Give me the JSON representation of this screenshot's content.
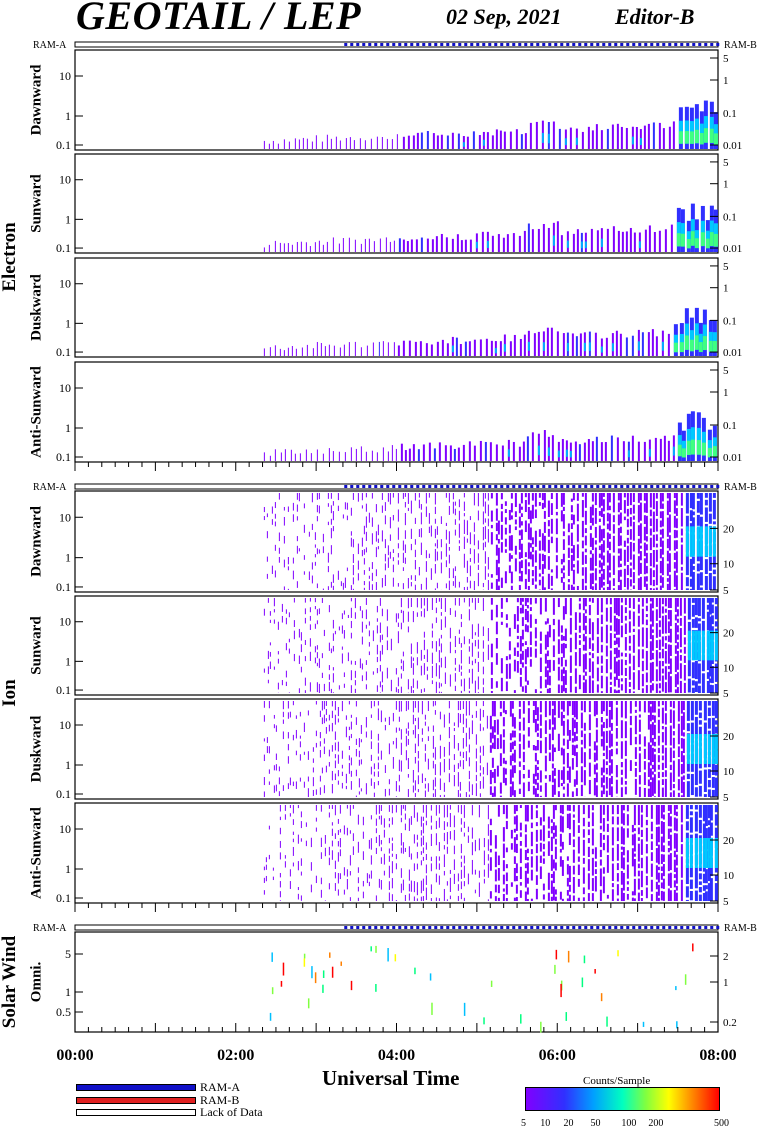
{
  "header": {
    "title": "GEOTAIL / LEP",
    "date": "02 Sep, 2021",
    "editor": "Editor-B"
  },
  "ram_labels": {
    "a": "RAM-A",
    "b": "RAM-B"
  },
  "groups": {
    "electron": "Electron",
    "ion": "Ion",
    "solar_wind": "Solar Wind"
  },
  "panel_labels": {
    "electron": [
      "Dawnward",
      "Sunward",
      "Duskward",
      "Anti-Sunward"
    ],
    "ion": [
      "Dawnward",
      "Sunward",
      "Duskward",
      "Anti-Sunward"
    ],
    "solar_wind": [
      "Omni."
    ]
  },
  "left_ticks": {
    "main": [
      "10",
      "1",
      "0.1"
    ],
    "solar_wind": [
      "5",
      "1",
      "0.5"
    ]
  },
  "right_ticks": {
    "electron": [
      "5",
      "1",
      "0.1",
      "0.01"
    ],
    "ion": [
      "20",
      "10",
      "5"
    ],
    "solar_wind": [
      "2",
      "1",
      "0.2"
    ]
  },
  "x_axis": {
    "title": "Universal Time",
    "ticks": [
      "00:00",
      "02:00",
      "04:00",
      "06:00",
      "08:00"
    ]
  },
  "legend": {
    "ram_a": "RAM-A",
    "ram_b": "RAM-B",
    "lack": "Lack of Data",
    "colors": {
      "ram_a": "#1010c8",
      "ram_b": "#e02020",
      "lack": "#ffffff"
    }
  },
  "colorbar": {
    "title": "Counts/Sample",
    "ticks": [
      "5",
      "10",
      "20",
      "50",
      "100",
      "200",
      "500"
    ],
    "colors": [
      "#8000ff",
      "#3030ff",
      "#00a0ff",
      "#00ffc0",
      "#80ff40",
      "#ffff00",
      "#ff8000",
      "#ff0000"
    ]
  },
  "chart_data": {
    "type": "heatmap",
    "title": "GEOTAIL / LEP",
    "xlabel": "Universal Time",
    "x_range": [
      "00:00",
      "08:00"
    ],
    "x_ticks": [
      "00:00",
      "02:00",
      "04:00",
      "06:00",
      "08:00"
    ],
    "panels": [
      {
        "group": "Electron",
        "name": "Dawnward",
        "y_left": [
          "10",
          "1",
          "0.1"
        ],
        "y_right": [
          "5",
          "1",
          "0.1",
          "0.01"
        ],
        "data_start": "02:20",
        "enhancement_start": "07:30"
      },
      {
        "group": "Electron",
        "name": "Sunward",
        "y_left": [
          "10",
          "1",
          "0.1"
        ],
        "y_right": [
          "5",
          "1",
          "0.1",
          "0.01"
        ],
        "data_start": "02:20",
        "enhancement_start": "07:30"
      },
      {
        "group": "Electron",
        "name": "Duskward",
        "y_left": [
          "10",
          "1",
          "0.1"
        ],
        "y_right": [
          "5",
          "1",
          "0.1",
          "0.01"
        ],
        "data_start": "02:20",
        "enhancement_start": "07:30"
      },
      {
        "group": "Electron",
        "name": "Anti-Sunward",
        "y_left": [
          "10",
          "1",
          "0.1"
        ],
        "y_right": [
          "5",
          "1",
          "0.1",
          "0.01"
        ],
        "data_start": "02:20",
        "enhancement_start": "07:30"
      },
      {
        "group": "Ion",
        "name": "Dawnward",
        "y_left": [
          "10",
          "1",
          "0.1"
        ],
        "y_right": [
          "20",
          "10",
          "5"
        ],
        "data_start": "02:20",
        "enhancement_start": "07:40"
      },
      {
        "group": "Ion",
        "name": "Sunward",
        "y_left": [
          "10",
          "1",
          "0.1"
        ],
        "y_right": [
          "20",
          "10",
          "5"
        ],
        "data_start": "02:20",
        "enhancement_start": "07:40"
      },
      {
        "group": "Ion",
        "name": "Duskward",
        "y_left": [
          "10",
          "1",
          "0.1"
        ],
        "y_right": [
          "20",
          "10",
          "5"
        ],
        "data_start": "02:20",
        "enhancement_start": "07:40"
      },
      {
        "group": "Ion",
        "name": "Anti-Sunward",
        "y_left": [
          "10",
          "1",
          "0.1"
        ],
        "y_right": [
          "20",
          "10",
          "5"
        ],
        "data_start": "02:20",
        "enhancement_start": "07:40"
      },
      {
        "group": "Solar Wind",
        "name": "Omni.",
        "y_left": [
          "5",
          "1",
          "0.5"
        ],
        "y_right": [
          "2",
          "1",
          "0.2"
        ],
        "data_start": "02:20"
      }
    ],
    "ram_segments": [
      {
        "mode": "RAM-A",
        "start": "00:00",
        "end": "03:30"
      },
      {
        "mode": "RAM-B",
        "start": "03:30",
        "end": "08:00",
        "pattern": "alternating"
      }
    ],
    "colorbar": {
      "label": "Counts/Sample",
      "ticks": [
        5,
        10,
        20,
        50,
        100,
        200,
        500
      ]
    }
  }
}
